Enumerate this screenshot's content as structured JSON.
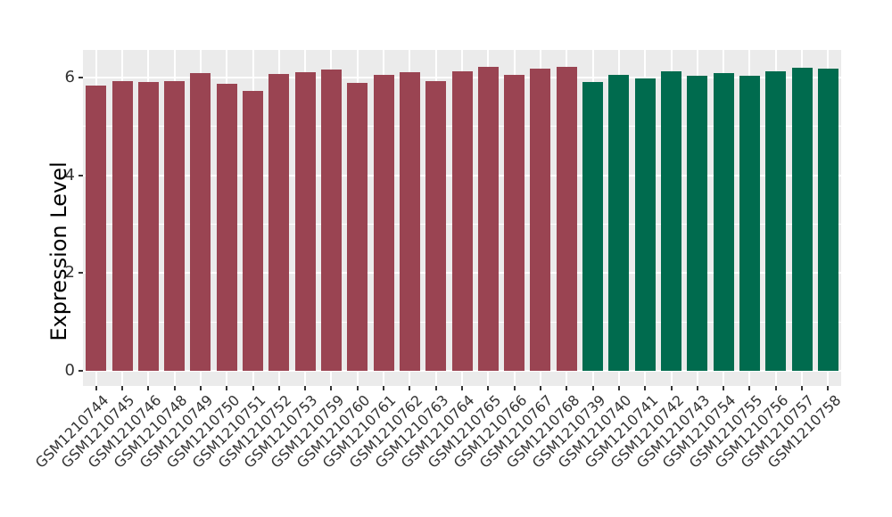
{
  "chart_data": {
    "type": "bar",
    "title": "",
    "xlabel": "",
    "ylabel": "Expression Level",
    "legend_position": "none",
    "grid": true,
    "panel_bg": "#EBEBEB",
    "grid_color": "#FFFFFF",
    "axis_text_color": "#333333",
    "ylim": [
      -0.31,
      6.56
    ],
    "y_ticks": [
      0,
      2,
      4,
      6
    ],
    "y_minor_ticks": [
      1,
      3,
      5
    ],
    "categories": [
      "GSM1210744",
      "GSM1210745",
      "GSM1210746",
      "GSM1210748",
      "GSM1210749",
      "GSM1210750",
      "GSM1210751",
      "GSM1210752",
      "GSM1210753",
      "GSM1210759",
      "GSM1210760",
      "GSM1210761",
      "GSM1210762",
      "GSM1210763",
      "GSM1210764",
      "GSM1210765",
      "GSM1210766",
      "GSM1210767",
      "GSM1210768",
      "GSM1210739",
      "GSM1210740",
      "GSM1210741",
      "GSM1210742",
      "GSM1210743",
      "GSM1210754",
      "GSM1210755",
      "GSM1210756",
      "GSM1210757",
      "GSM1210758"
    ],
    "values": [
      5.83,
      5.93,
      5.9,
      5.92,
      6.08,
      5.86,
      5.72,
      6.07,
      6.1,
      6.16,
      5.89,
      6.05,
      6.1,
      5.92,
      6.12,
      6.22,
      6.05,
      6.18,
      6.22,
      5.9,
      6.05,
      5.98,
      6.13,
      6.03,
      6.09,
      6.03,
      6.12,
      6.19,
      6.17
    ],
    "bar_groups": [
      "A",
      "A",
      "A",
      "A",
      "A",
      "A",
      "A",
      "A",
      "A",
      "A",
      "A",
      "A",
      "A",
      "A",
      "A",
      "A",
      "A",
      "A",
      "A",
      "B",
      "B",
      "B",
      "B",
      "B",
      "B",
      "B",
      "B",
      "B",
      "B"
    ],
    "group_colors": {
      "A": "#9A4452",
      "B": "#006B4E"
    }
  }
}
